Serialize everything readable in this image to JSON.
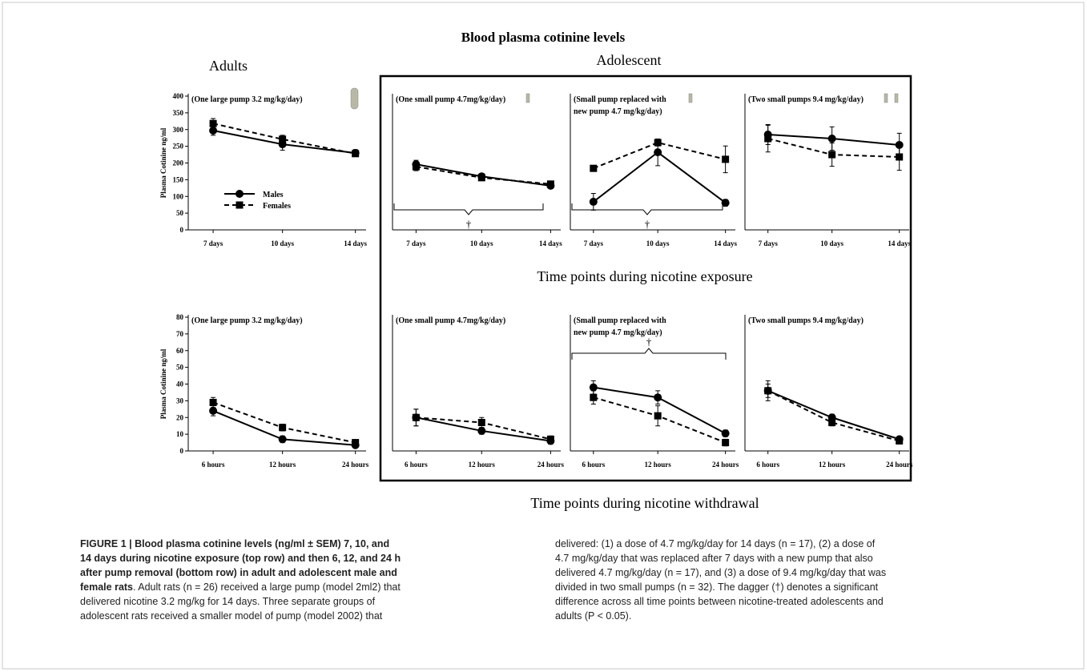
{
  "figure": {
    "title": "Blood plasma cotinine levels",
    "group_labels": [
      "Adults",
      "Adolescent"
    ],
    "row_labels": [
      "Time points during nicotine exposure",
      "Time points during nicotine withdrawal"
    ]
  },
  "chart_data": [
    {
      "type": "line",
      "subtitle": [
        "(One large pump 3.2 mg/kg/day)"
      ],
      "y_label": "Plasma Cotinine ng/ml",
      "categories": [
        "7 days",
        "10 days",
        "14 days"
      ],
      "ylim": [
        0,
        400
      ],
      "yticks": [
        0,
        50,
        100,
        150,
        200,
        250,
        300,
        350,
        400
      ],
      "legend": true,
      "series": [
        {
          "name": "Males",
          "color": "#000000",
          "dash": "solid",
          "marker": "circle",
          "values": [
            297,
            256,
            230
          ],
          "errors": [
            14,
            18,
            10
          ]
        },
        {
          "name": "Females",
          "color": "#000000",
          "dash": "dashed",
          "marker": "square",
          "values": [
            318,
            271,
            228
          ],
          "errors": [
            15,
            12,
            8
          ]
        }
      ]
    },
    {
      "type": "line",
      "subtitle": [
        "(One small pump 4.7mg/kg/day)"
      ],
      "categories": [
        "7 days",
        "10 days",
        "14 days"
      ],
      "ylim": [
        0,
        400
      ],
      "annotation": "†",
      "series": [
        {
          "color": "#000000",
          "dash": "solid",
          "marker": "circle",
          "values": [
            196,
            160,
            132
          ],
          "errors": [
            12,
            8,
            8
          ]
        },
        {
          "color": "#000000",
          "dash": "dashed",
          "marker": "square",
          "values": [
            189,
            156,
            137
          ],
          "errors": [
            12,
            8,
            6
          ]
        }
      ]
    },
    {
      "type": "line",
      "subtitle": [
        "(Small pump replaced with",
        "new pump  4.7 mg/kg/day)"
      ],
      "categories": [
        "7 days",
        "10 days",
        "14 days"
      ],
      "ylim": [
        0,
        400
      ],
      "annotation": "†",
      "series": [
        {
          "color": "#000000",
          "dash": "solid",
          "marker": "circle",
          "values": [
            84,
            232,
            81
          ],
          "errors": [
            25,
            40,
            10
          ]
        },
        {
          "color": "#000000",
          "dash": "dashed",
          "marker": "square",
          "values": [
            184,
            261,
            211
          ],
          "errors": [
            8,
            10,
            40
          ]
        }
      ]
    },
    {
      "type": "line",
      "subtitle": [
        "(Two small pumps 9.4 mg/kg/day)"
      ],
      "categories": [
        "7 days",
        "10 days",
        "14 days"
      ],
      "ylim": [
        0,
        400
      ],
      "series": [
        {
          "color": "#000000",
          "dash": "solid",
          "marker": "circle",
          "values": [
            285,
            273,
            254
          ],
          "errors": [
            30,
            35,
            35
          ]
        },
        {
          "color": "#000000",
          "dash": "dashed",
          "marker": "square",
          "values": [
            273,
            225,
            218
          ],
          "errors": [
            40,
            35,
            40
          ]
        }
      ]
    },
    {
      "type": "line",
      "subtitle": [
        "(One large pump 3.2 mg/kg/day)"
      ],
      "y_label": "Plasma Cotinine ng/ml",
      "categories": [
        "6 hours",
        "12 hours",
        "24 hours"
      ],
      "ylim": [
        0,
        80
      ],
      "yticks": [
        0,
        10,
        20,
        30,
        40,
        50,
        60,
        70,
        80
      ],
      "series": [
        {
          "color": "#000000",
          "dash": "solid",
          "marker": "circle",
          "values": [
            24,
            7,
            3.5
          ],
          "errors": [
            3,
            2,
            1.5
          ]
        },
        {
          "color": "#000000",
          "dash": "dashed",
          "marker": "square",
          "values": [
            29,
            14,
            5
          ],
          "errors": [
            3,
            2,
            1
          ]
        }
      ]
    },
    {
      "type": "line",
      "subtitle": [
        "(One small pump 4.7mg/kg/day)"
      ],
      "categories": [
        "6 hours",
        "12 hours",
        "24 hours"
      ],
      "ylim": [
        0,
        80
      ],
      "series": [
        {
          "color": "#000000",
          "dash": "solid",
          "marker": "circle",
          "values": [
            20,
            12,
            6
          ],
          "errors": [
            5,
            2,
            2
          ]
        },
        {
          "color": "#000000",
          "dash": "dashed",
          "marker": "square",
          "values": [
            20,
            17,
            7
          ],
          "errors": [
            5,
            3,
            2
          ]
        }
      ]
    },
    {
      "type": "line",
      "subtitle": [
        "(Small pump replaced with",
        "new pump  4.7 mg/kg/day)"
      ],
      "categories": [
        "6 hours",
        "12 hours",
        "24 hours"
      ],
      "ylim": [
        0,
        80
      ],
      "annotation": "†",
      "series": [
        {
          "color": "#000000",
          "dash": "solid",
          "marker": "circle",
          "values": [
            38,
            32,
            10.5
          ],
          "errors": [
            4,
            4,
            2
          ]
        },
        {
          "color": "#000000",
          "dash": "dashed",
          "marker": "square",
          "values": [
            32,
            21,
            5
          ],
          "errors": [
            4,
            6,
            2
          ]
        }
      ]
    },
    {
      "type": "line",
      "subtitle": [
        "(Two small pumps 9.4 mg/kg/day)"
      ],
      "categories": [
        "6 hours",
        "12 hours",
        "24 hours"
      ],
      "ylim": [
        0,
        80
      ],
      "series": [
        {
          "color": "#000000",
          "dash": "solid",
          "marker": "circle",
          "values": [
            36,
            20,
            7
          ],
          "errors": [
            6,
            2,
            1.5
          ]
        },
        {
          "color": "#000000",
          "dash": "dashed",
          "marker": "square",
          "values": [
            36,
            17,
            6
          ],
          "errors": [
            4,
            2,
            1
          ]
        }
      ]
    }
  ],
  "caption": {
    "left": [
      {
        "bold": "FIGURE 1 | Blood plasma cotinine levels (ng/ml ± SEM) 7, 10, and"
      },
      {
        "bold": "14 days during nicotine exposure (top row) and then 6, 12, and 24 h"
      },
      {
        "bold": "after pump removal (bottom row) in adult and adolescent male and"
      },
      {
        "bold": "female rats",
        "text": ". Adult rats (n = 26) received a large pump (model 2ml2) that"
      },
      {
        "text": "delivered nicotine 3.2 mg/kg for 14 days. Three separate groups of"
      },
      {
        "text": "adolescent rats received a smaller model of pump (model 2002) that"
      }
    ],
    "right": [
      {
        "text": "delivered: (1) a dose of 4.7 mg/kg/day for 14 days (n = 17), (2) a dose of"
      },
      {
        "text": "4.7 mg/kg/day that was replaced after 7 days with a new pump that also"
      },
      {
        "text": "delivered 4.7 mg/kg/day (n = 17), and (3) a dose of 9.4 mg/kg/day that was"
      },
      {
        "text": "divided in two small pumps (n = 32). The dagger (†) denotes a significant"
      },
      {
        "text": "difference across all time points between nicotine-treated adolescents and"
      },
      {
        "text": "adults (P < 0.05)."
      }
    ]
  }
}
